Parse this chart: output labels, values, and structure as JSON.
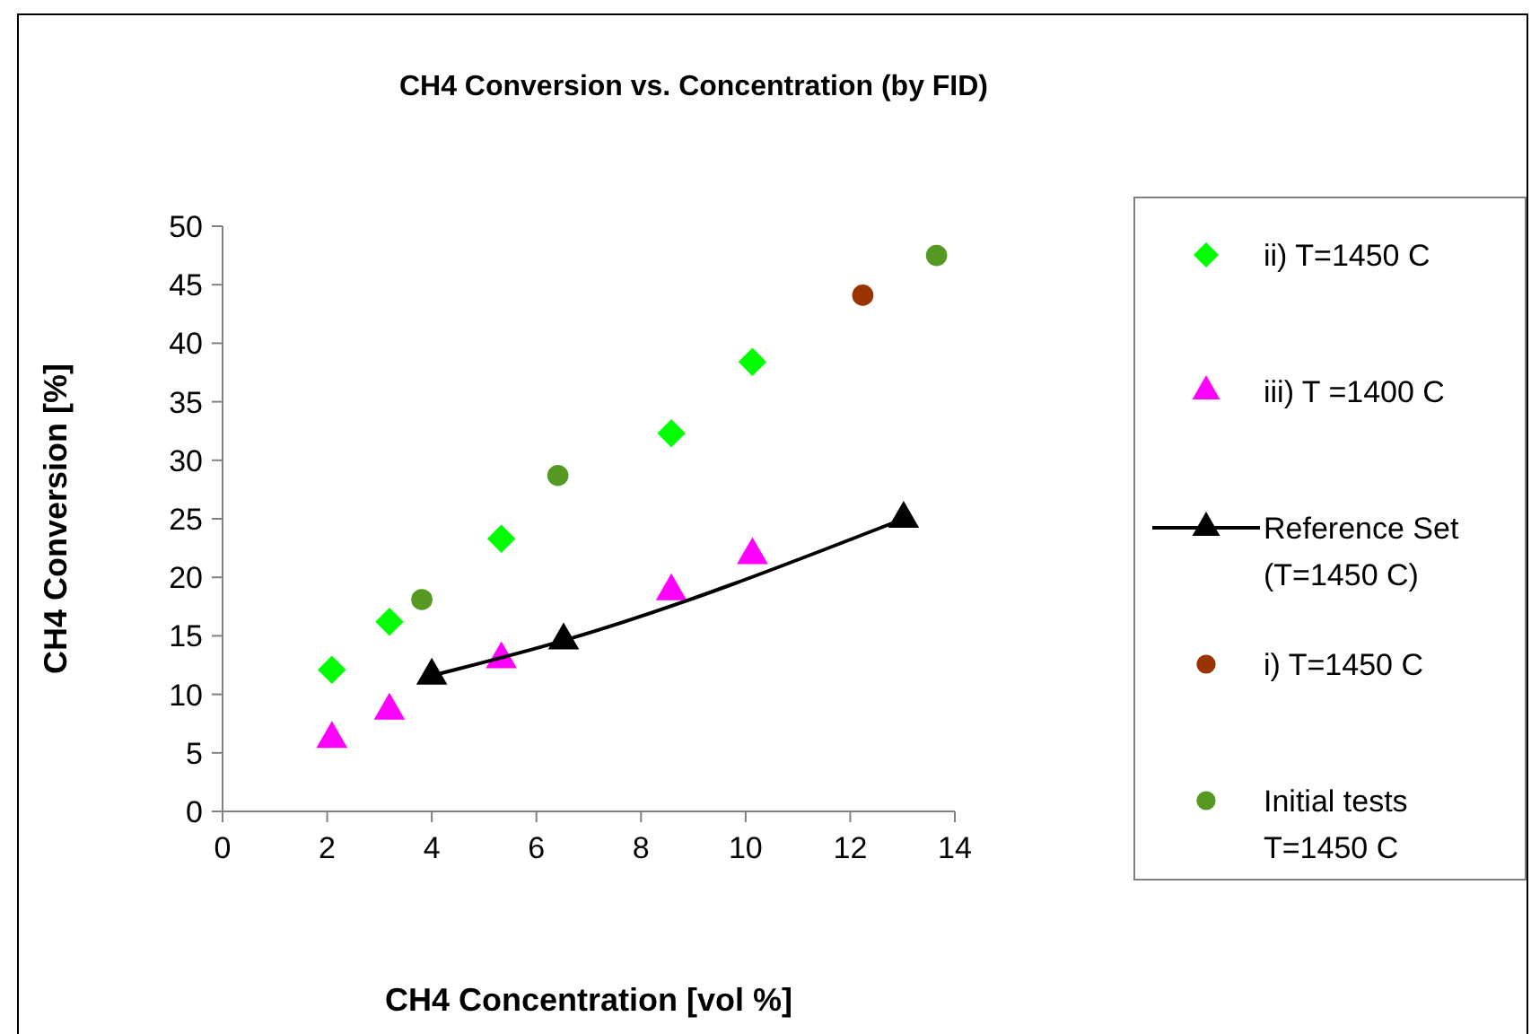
{
  "chart_data": {
    "type": "scatter",
    "title": "CH4 Conversion vs. Concentration (by FID)",
    "xlabel": "CH4 Concentration [vol %]",
    "ylabel": "CH4 Conversion [%]",
    "xlim": [
      0,
      14
    ],
    "xticks": [
      0,
      2,
      4,
      6,
      8,
      10,
      12,
      14
    ],
    "ylim": [
      0,
      50
    ],
    "yticks": [
      0,
      5,
      10,
      15,
      20,
      25,
      30,
      35,
      40,
      45,
      50
    ],
    "grid": false,
    "legend": "right",
    "series": [
      {
        "name": "ii) T=1450 C",
        "marker": "diamond",
        "color": "#00ff00",
        "x": [
          2.09,
          3.19,
          5.33,
          8.58,
          10.13
        ],
        "values": [
          12.1,
          16.2,
          23.3,
          32.3,
          38.4
        ]
      },
      {
        "name": "iii)  T =1400 C",
        "marker": "triangle",
        "color": "#ff00ff",
        "x": [
          2.09,
          3.19,
          5.33,
          8.58,
          10.13
        ],
        "values": [
          6.2,
          8.6,
          13.0,
          18.8,
          21.9
        ]
      },
      {
        "name": "Reference Set (T=1450 C)",
        "type": "line",
        "marker": "triangle",
        "color": "#000000",
        "x": [
          4.0,
          6.52,
          13.02
        ],
        "values": [
          11.6,
          14.6,
          25.0
        ]
      },
      {
        "name": "i)  T=1450 C",
        "marker": "circle",
        "color": "#993300",
        "x": [
          12.24
        ],
        "values": [
          44.1
        ]
      },
      {
        "name": "Initial tests T=1450 C",
        "marker": "circle",
        "color": "#559922",
        "x": [
          3.81,
          6.41,
          13.65
        ],
        "values": [
          18.1,
          28.7,
          47.5
        ]
      }
    ]
  }
}
